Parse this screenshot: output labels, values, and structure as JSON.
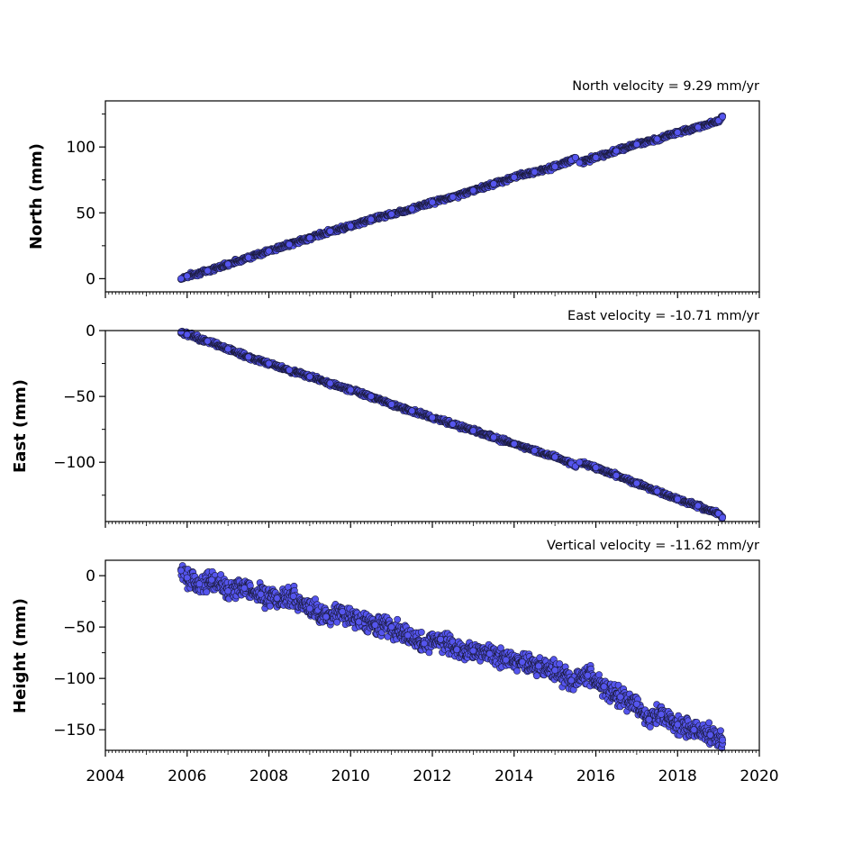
{
  "chart_data": [
    {
      "type": "scatter",
      "title": "North velocity = 9.29 mm/yr",
      "ylabel": "North (mm)",
      "xlabel": "",
      "xlim": [
        2004,
        2020
      ],
      "ylim": [
        -10,
        135
      ],
      "yticks": [
        0,
        50,
        100
      ],
      "ytick_labels": [
        "0",
        "50",
        "100"
      ],
      "xtick_labels_shown": false,
      "marker_color": "#5555ee",
      "marker_edge": "#1a1a3a",
      "series": [
        {
          "x": [
            2005.85,
            2006.0,
            2006.5,
            2007.0,
            2007.5,
            2008.0,
            2008.5,
            2009.0,
            2009.5,
            2010.0,
            2010.5,
            2011.0,
            2011.5,
            2012.0,
            2012.5,
            2013.0,
            2013.5,
            2014.0,
            2014.5,
            2015.0,
            2015.4,
            2015.5,
            2015.6,
            2016.0,
            2016.5,
            2017.0,
            2017.5,
            2018.0,
            2018.5,
            2019.0,
            2019.1
          ],
          "y": [
            0,
            2,
            6,
            11,
            16,
            21,
            26,
            31,
            36,
            40,
            45,
            49,
            53,
            58,
            62,
            67,
            72,
            77,
            81,
            85,
            90,
            92,
            88,
            92,
            97,
            102,
            106,
            111,
            115,
            120,
            123
          ]
        }
      ]
    },
    {
      "type": "scatter",
      "title": "East velocity = -10.71 mm/yr",
      "ylabel": "East (mm)",
      "xlabel": "",
      "xlim": [
        2004,
        2020
      ],
      "ylim": [
        -145,
        0
      ],
      "yticks": [
        0,
        -50,
        -100
      ],
      "ytick_labels": [
        "0",
        "−50",
        "−100"
      ],
      "xtick_labels_shown": false,
      "marker_color": "#5555ee",
      "marker_edge": "#1a1a3a",
      "series": [
        {
          "x": [
            2005.85,
            2006.0,
            2006.5,
            2007.0,
            2007.5,
            2008.0,
            2008.5,
            2009.0,
            2009.5,
            2010.0,
            2010.5,
            2011.0,
            2011.5,
            2012.0,
            2012.5,
            2013.0,
            2013.5,
            2014.0,
            2014.5,
            2015.0,
            2015.4,
            2015.5,
            2015.6,
            2016.0,
            2016.5,
            2017.0,
            2017.5,
            2018.0,
            2018.5,
            2019.0,
            2019.1
          ],
          "y": [
            -1,
            -3,
            -8,
            -14,
            -20,
            -25,
            -30,
            -35,
            -40,
            -45,
            -50,
            -56,
            -61,
            -66,
            -71,
            -76,
            -81,
            -86,
            -91,
            -96,
            -101,
            -103,
            -100,
            -104,
            -110,
            -116,
            -122,
            -128,
            -133,
            -139,
            -142
          ]
        }
      ]
    },
    {
      "type": "scatter",
      "title": "Vertical velocity = -11.62 mm/yr",
      "ylabel": "Height (mm)",
      "xlabel": "",
      "xlim": [
        2004,
        2020
      ],
      "ylim": [
        -170,
        15
      ],
      "yticks": [
        0,
        -50,
        -100,
        -150
      ],
      "ytick_labels": [
        "0",
        "−50",
        "−100",
        "−150"
      ],
      "xticks": [
        2004,
        2006,
        2008,
        2010,
        2012,
        2014,
        2016,
        2018,
        2020
      ],
      "xtick_labels": [
        "2004",
        "2006",
        "2008",
        "2010",
        "2012",
        "2014",
        "2016",
        "2018",
        "2020"
      ],
      "xtick_labels_shown": true,
      "marker_color": "#5555ee",
      "marker_edge": "#1a1a3a",
      "series": [
        {
          "x": [
            2005.85,
            2006.0,
            2006.3,
            2006.6,
            2007.0,
            2007.4,
            2007.8,
            2008.2,
            2008.6,
            2009.0,
            2009.4,
            2009.8,
            2010.2,
            2010.6,
            2011.0,
            2011.4,
            2011.8,
            2012.2,
            2012.6,
            2013.0,
            2013.4,
            2013.8,
            2014.2,
            2014.6,
            2015.0,
            2015.4,
            2015.8,
            2016.2,
            2016.6,
            2017.0,
            2017.3,
            2017.6,
            2018.0,
            2018.4,
            2018.8,
            2019.1
          ],
          "y": [
            5,
            -2,
            -8,
            -4,
            -15,
            -12,
            -18,
            -22,
            -20,
            -32,
            -40,
            -35,
            -45,
            -48,
            -50,
            -58,
            -66,
            -62,
            -72,
            -73,
            -76,
            -82,
            -84,
            -88,
            -92,
            -102,
            -97,
            -108,
            -118,
            -125,
            -140,
            -135,
            -145,
            -150,
            -155,
            -160
          ]
        }
      ]
    }
  ]
}
